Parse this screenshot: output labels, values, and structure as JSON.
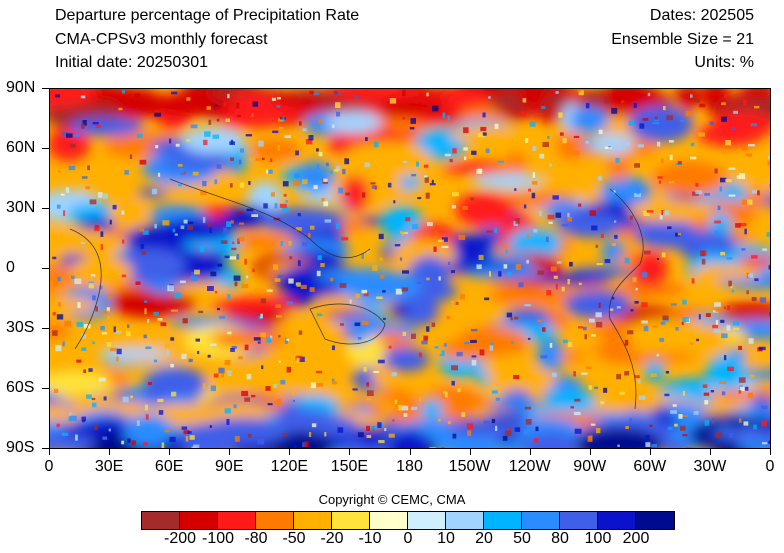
{
  "header": {
    "title": "Departure percentage of Precipitation Rate",
    "model": "CMA-CPSv3 monthly forecast",
    "initial_date": "Initial date: 20250301",
    "dates": "Dates: 202505",
    "ensemble": "Ensemble Size = 21",
    "units": "Units: %"
  },
  "axes": {
    "y_labels": [
      "90N",
      "60N",
      "30N",
      "0",
      "30S",
      "60S",
      "90S"
    ],
    "x_labels": [
      "0",
      "30E",
      "60E",
      "90E",
      "120E",
      "150E",
      "180",
      "150W",
      "120W",
      "90W",
      "60W",
      "30W",
      "0"
    ]
  },
  "copyright": "Copyright © CEMC, CMA",
  "colorbar": {
    "colors": [
      "#a52a2a",
      "#d40000",
      "#ff1a1a",
      "#ff7a00",
      "#ffb000",
      "#ffe23a",
      "#ffffcc",
      "#cfefff",
      "#a0d4ff",
      "#00b4ff",
      "#2a8cff",
      "#3f5fe8",
      "#0a12cc",
      "#000a8f"
    ],
    "labels": [
      "-200",
      "-100",
      "-80",
      "-50",
      "-20",
      "-10",
      "0",
      "10",
      "20",
      "50",
      "80",
      "100",
      "200"
    ]
  },
  "map_regions": [
    {
      "label": "Map",
      "description": "Global precipitation departure field"
    }
  ]
}
